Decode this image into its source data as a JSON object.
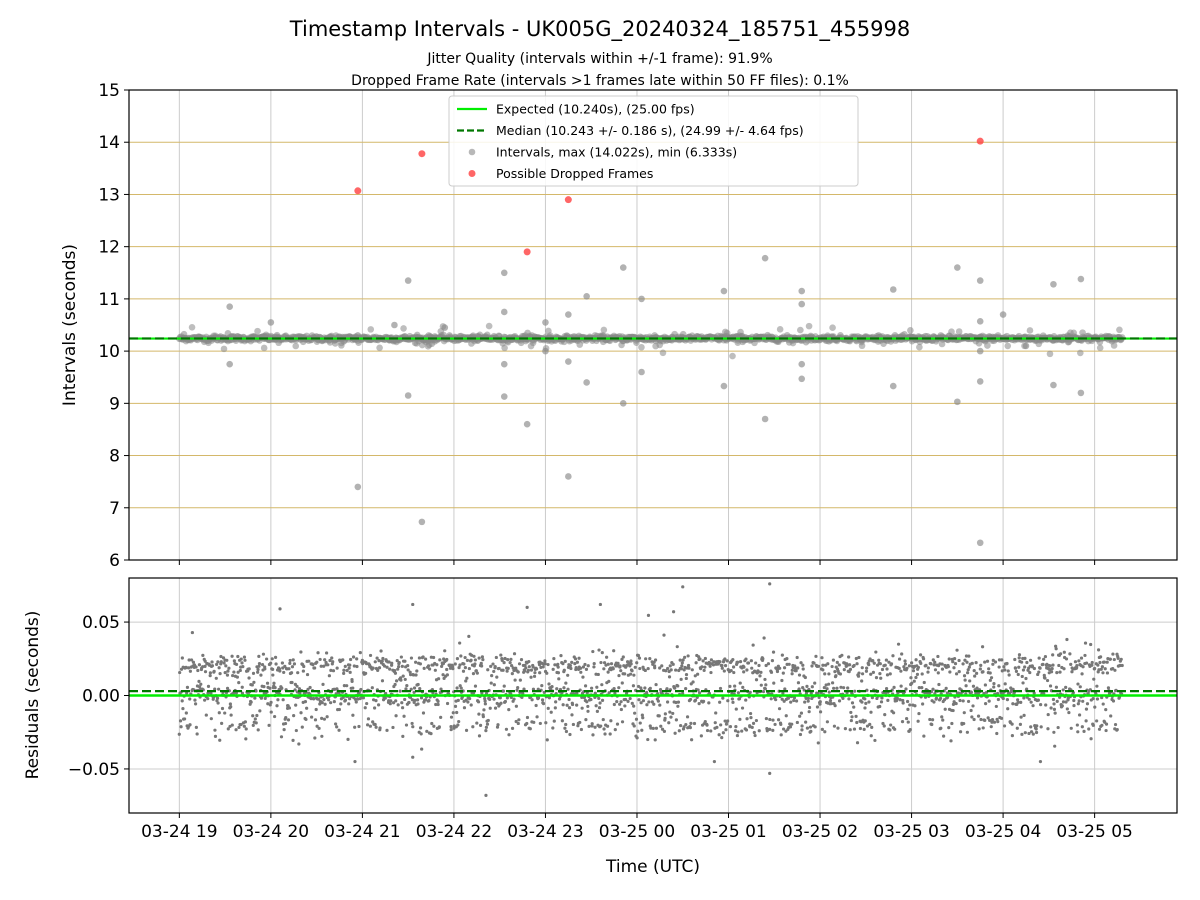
{
  "title": "Timestamp Intervals - UK005G_20240324_185751_455998",
  "subtitle_1": "Jitter Quality (intervals within +/-1 frame): 91.9%",
  "subtitle_2": "Dropped Frame Rate (intervals >1 frames late within 50 FF files): 0.1%",
  "colors": {
    "expected": "#00ee00",
    "median": "#007700",
    "intervals": "#888888",
    "dropped": "#ff4040",
    "hgrid_top": "#d4b86a",
    "grid": "#cccccc",
    "residual_points": "#777777"
  },
  "chart_data": [
    {
      "type": "scatter",
      "ylabel": "Intervals (seconds)",
      "ylim": [
        6,
        15
      ],
      "xlim_hours": [
        18.45,
        29.9
      ],
      "yticks": [
        6,
        7,
        8,
        9,
        10,
        11,
        12,
        13,
        14,
        15
      ],
      "grid": true,
      "legend_placement": "top-center",
      "legend": [
        "Expected (10.240s), (25.00 fps)",
        "Median (10.243 +/- 0.186 s), (24.99 +/- 4.64 fps)",
        "Intervals, max (14.022s), min (6.333s)",
        "Possible Dropped Frames"
      ],
      "expected": 10.24,
      "median": 10.243,
      "x_range_hours": [
        19.0,
        29.3
      ],
      "interval_outliers": [
        [
          19.55,
          10.85
        ],
        [
          19.55,
          9.75
        ],
        [
          20.0,
          10.55
        ],
        [
          21.35,
          10.5
        ],
        [
          21.5,
          11.35
        ],
        [
          21.5,
          9.15
        ],
        [
          21.65,
          6.73
        ],
        [
          21.9,
          10.45
        ],
        [
          22.55,
          11.5
        ],
        [
          22.55,
          10.75
        ],
        [
          22.55,
          9.75
        ],
        [
          22.55,
          9.13
        ],
        [
          22.8,
          8.6
        ],
        [
          23.0,
          10.55
        ],
        [
          23.0,
          10.0
        ],
        [
          23.25,
          10.7
        ],
        [
          23.25,
          9.8
        ],
        [
          23.25,
          7.6
        ],
        [
          23.45,
          11.05
        ],
        [
          23.45,
          9.4
        ],
        [
          23.85,
          11.6
        ],
        [
          23.85,
          9.0
        ],
        [
          24.05,
          11.0
        ],
        [
          24.05,
          9.6
        ],
        [
          24.95,
          11.15
        ],
        [
          24.95,
          9.33
        ],
        [
          25.4,
          11.78
        ],
        [
          25.4,
          8.7
        ],
        [
          25.8,
          11.15
        ],
        [
          25.8,
          10.9
        ],
        [
          25.8,
          9.75
        ],
        [
          25.8,
          9.47
        ],
        [
          26.8,
          11.18
        ],
        [
          26.8,
          9.33
        ],
        [
          27.5,
          11.6
        ],
        [
          27.5,
          9.03
        ],
        [
          27.75,
          11.35
        ],
        [
          27.75,
          10.57
        ],
        [
          27.75,
          10.0
        ],
        [
          27.75,
          9.42
        ],
        [
          27.75,
          6.33
        ],
        [
          28.0,
          10.7
        ],
        [
          28.25,
          10.1
        ],
        [
          28.55,
          11.28
        ],
        [
          28.55,
          9.35
        ],
        [
          28.85,
          11.38
        ],
        [
          28.85,
          9.2
        ],
        [
          20.95,
          7.4
        ],
        [
          20.95,
          10.3
        ]
      ],
      "dropped_frames": [
        [
          20.95,
          13.07
        ],
        [
          21.65,
          13.78
        ],
        [
          22.8,
          11.9
        ],
        [
          23.25,
          12.9
        ],
        [
          27.75,
          14.02
        ]
      ]
    },
    {
      "type": "scatter",
      "xlabel": "Time (UTC)",
      "ylabel": "Residuals (seconds)",
      "ylim": [
        -0.08,
        0.08
      ],
      "yticks": [
        0.05,
        0.0,
        -0.05
      ],
      "ytick_labels": [
        "0.05",
        "0.00",
        "−0.05"
      ],
      "grid": true,
      "expected": 0.0,
      "median": 0.003,
      "x_range_hours": [
        19.0,
        29.3
      ],
      "n_points": 2400,
      "residual_outliers": [
        [
          21.55,
          0.062
        ],
        [
          23.6,
          0.062
        ],
        [
          24.5,
          0.074
        ],
        [
          24.4,
          0.057
        ],
        [
          25.45,
          0.076
        ],
        [
          22.35,
          -0.068
        ],
        [
          21.55,
          -0.042
        ],
        [
          25.45,
          -0.053
        ],
        [
          20.1,
          0.059
        ],
        [
          22.8,
          0.06
        ]
      ],
      "xtick_hours": [
        19,
        20,
        21,
        22,
        23,
        24,
        25,
        26,
        27,
        28,
        29
      ],
      "xtick_labels": [
        "03-24 19",
        "03-24 20",
        "03-24 21",
        "03-24 22",
        "03-24 23",
        "03-25 00",
        "03-25 01",
        "03-25 02",
        "03-25 03",
        "03-25 04",
        "03-25 05"
      ]
    }
  ]
}
